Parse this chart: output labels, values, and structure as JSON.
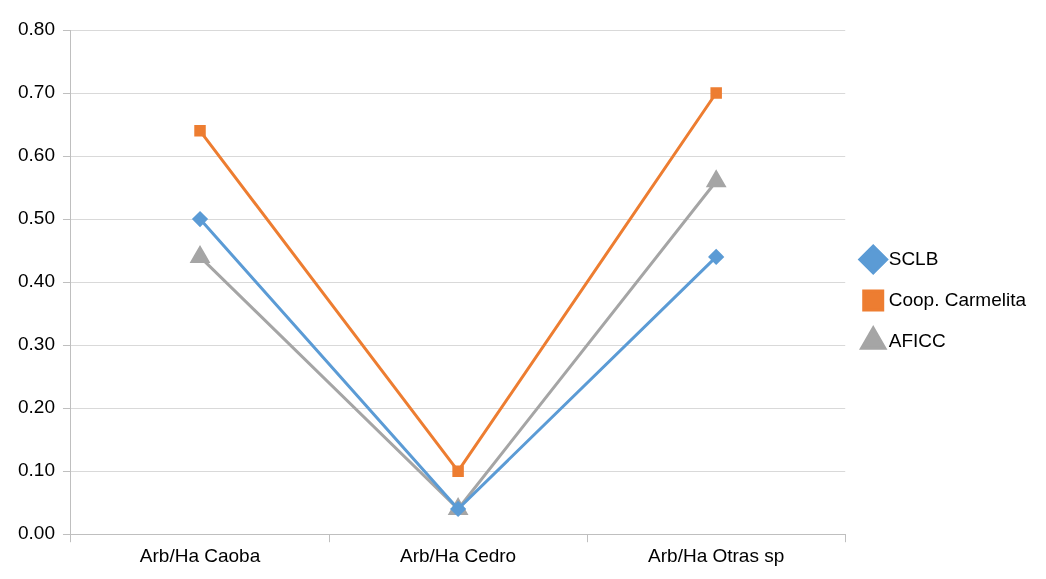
{
  "chart_data": {
    "type": "line",
    "categories": [
      "Arb/Ha Caoba",
      "Arb/Ha Cedro",
      "Arb/Ha Otras sp"
    ],
    "series": [
      {
        "name": "SCLB",
        "color": "#5b9bd5",
        "marker": "diamond",
        "values": [
          0.5,
          0.04,
          0.44
        ]
      },
      {
        "name": "Coop. Carmelita",
        "color": "#ed7d31",
        "marker": "square",
        "values": [
          0.64,
          0.1,
          0.7
        ]
      },
      {
        "name": "AFICC",
        "color": "#a5a5a5",
        "marker": "triangle",
        "values": [
          0.44,
          0.04,
          0.56
        ]
      }
    ],
    "ylim": [
      0,
      0.8
    ],
    "yticks": [
      {
        "value": 0,
        "label": "0.00"
      },
      {
        "value": 0.1,
        "label": "0.10"
      },
      {
        "value": 0.2,
        "label": "0.20"
      },
      {
        "value": 0.3,
        "label": "0.30"
      },
      {
        "value": 0.4,
        "label": "0.40"
      },
      {
        "value": 0.5,
        "label": "0.50"
      },
      {
        "value": 0.6,
        "label": "0.60"
      },
      {
        "value": 0.7,
        "label": "0.70"
      },
      {
        "value": 0.8,
        "label": "0.80"
      }
    ],
    "grid": "y",
    "legend": "right"
  }
}
